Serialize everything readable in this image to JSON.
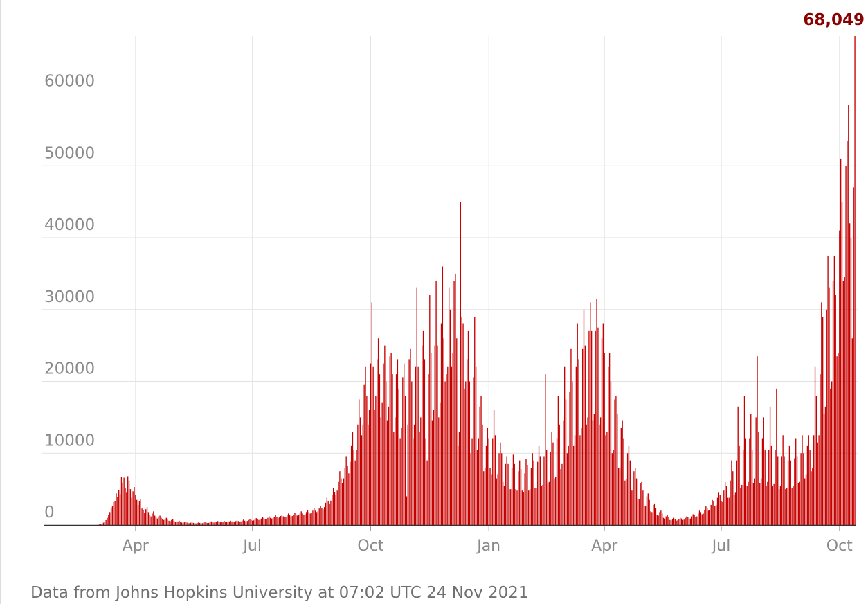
{
  "chart_data": {
    "type": "bar",
    "title": "",
    "xlabel": "",
    "ylabel": "",
    "x_start": "2020-01-22",
    "x_end": "2021-11-23",
    "ylim": [
      0,
      68049
    ],
    "yticks": [
      0,
      10000,
      20000,
      30000,
      40000,
      50000,
      60000
    ],
    "ytick_labels": [
      "0",
      "10000",
      "20000",
      "30000",
      "40000",
      "50000",
      "60000"
    ],
    "xticks": [
      {
        "date": "2020-04-01",
        "label": "Apr"
      },
      {
        "date": "2020-07-01",
        "label": "Jul"
      },
      {
        "date": "2020-10-01",
        "label": "Oct"
      },
      {
        "date": "2021-01-01",
        "label": "Jan"
      },
      {
        "date": "2021-04-01",
        "label": "Apr"
      },
      {
        "date": "2021-07-01",
        "label": "Jul"
      },
      {
        "date": "2021-10-01",
        "label": "Oct"
      }
    ],
    "grid": true,
    "bar_color": "#c70000",
    "peak_label": "68,049",
    "peak_label_color": "#8b0000",
    "values": [
      0,
      0,
      0,
      2,
      0,
      0,
      0,
      0,
      0,
      0,
      0,
      0,
      0,
      0,
      0,
      0,
      0,
      0,
      0,
      0,
      0,
      0,
      0,
      0,
      0,
      0,
      0,
      0,
      0,
      0,
      0,
      0,
      0,
      0,
      0,
      0,
      0,
      0,
      0,
      0,
      10,
      40,
      80,
      150,
      220,
      330,
      470,
      680,
      1000,
      1400,
      1800,
      2300,
      2600,
      3200,
      3300,
      4400,
      3900,
      4900,
      4300,
      6700,
      5900,
      6600,
      5200,
      4500,
      6800,
      6200,
      5000,
      3800,
      4700,
      5300,
      4200,
      3500,
      2800,
      3300,
      3600,
      2300,
      2100,
      1700,
      2200,
      2500,
      1800,
      1400,
      1200,
      1600,
      1900,
      1300,
      1100,
      900,
      1200,
      1300,
      1000,
      800,
      700,
      900,
      1000,
      750,
      600,
      550,
      700,
      800,
      600,
      450,
      400,
      500,
      600,
      450,
      350,
      300,
      380,
      420,
      350,
      280,
      250,
      320,
      380,
      300,
      250,
      230,
      300,
      350,
      300,
      250,
      260,
      330,
      380,
      320,
      280,
      300,
      400,
      500,
      400,
      350,
      380,
      450,
      550,
      450,
      380,
      400,
      480,
      580,
      480,
      400,
      420,
      500,
      600,
      500,
      420,
      450,
      550,
      650,
      550,
      480,
      500,
      620,
      750,
      600,
      520,
      560,
      700,
      850,
      700,
      600,
      650,
      800,
      950,
      800,
      700,
      750,
      900,
      1100,
      950,
      800,
      850,
      1000,
      1200,
      1000,
      900,
      950,
      1150,
      1350,
      1150,
      1000,
      1050,
      1250,
      1450,
      1200,
      1100,
      1150,
      1350,
      1600,
      1350,
      1200,
      1250,
      1450,
      1700,
      1450,
      1300,
      1350,
      1600,
      1900,
      1600,
      1400,
      1500,
      1800,
      2100,
      1800,
      1600,
      1700,
      2000,
      2400,
      2000,
      1800,
      1900,
      2300,
      2700,
      2400,
      2200,
      2500,
      3100,
      3800,
      3300,
      3000,
      3400,
      4200,
      5200,
      4600,
      4200,
      4800,
      6000,
      7500,
      6500,
      5800,
      6500,
      8000,
      9500,
      8200,
      7200,
      8800,
      11000,
      13000,
      10500,
      9000,
      10500,
      14000,
      17500,
      15000,
      12500,
      14000,
      19500,
      22000,
      18000,
      14000,
      16000,
      22500,
      31000,
      22000,
      16000,
      18000,
      23000,
      26000,
      21000,
      15000,
      17000,
      22500,
      25000,
      20000,
      14500,
      16500,
      23500,
      24000,
      21000,
      13000,
      15000,
      21000,
      23000,
      19000,
      12000,
      13500,
      20500,
      22500,
      18000,
      4000,
      14000,
      23000,
      24500,
      20000,
      12000,
      14000,
      22000,
      33000,
      22000,
      13000,
      15000,
      25000,
      27000,
      23000,
      12000,
      9000,
      21000,
      32000,
      24000,
      14500,
      16000,
      25000,
      34000,
      25000,
      15000,
      17000,
      28000,
      36000,
      26000,
      20000,
      21000,
      22000,
      33000,
      30000,
      22000,
      24000,
      34000,
      35000,
      26000,
      11000,
      13000,
      45000,
      29000,
      28000,
      19000,
      20000,
      23000,
      27000,
      20000,
      10000,
      12000,
      20500,
      29000,
      22000,
      10500,
      12000,
      16500,
      18000,
      14000,
      7500,
      8000,
      11000,
      13500,
      12000,
      8000,
      7000,
      12000,
      16000,
      12500,
      6500,
      7000,
      10000,
      11500,
      10000,
      6000,
      5500,
      8500,
      9500,
      8500,
      5000,
      5000,
      8000,
      9800,
      8500,
      5000,
      4800,
      7500,
      9000,
      7800,
      4800,
      4600,
      7200,
      9200,
      8300,
      4800,
      5000,
      8000,
      10000,
      9000,
      5200,
      5200,
      8800,
      11000,
      9500,
      5400,
      5600,
      9500,
      21000,
      10500,
      5800,
      6000,
      10200,
      13000,
      11500,
      6500,
      6700,
      12000,
      18000,
      14000,
      7800,
      8500,
      14500,
      22000,
      17500,
      10000,
      11000,
      18500,
      24500,
      20000,
      11000,
      12500,
      22000,
      28000,
      23000,
      12500,
      13500,
      24500,
      30000,
      25000,
      14000,
      15000,
      27000,
      31000,
      27000,
      14500,
      15500,
      27000,
      31500,
      27500,
      14000,
      15000,
      26000,
      28000,
      24000,
      12500,
      13000,
      22000,
      24000,
      20000,
      10000,
      10500,
      17500,
      18000,
      15500,
      8000,
      8000,
      13500,
      14500,
      12000,
      6200,
      6400,
      10000,
      11000,
      9000,
      4800,
      4800,
      7500,
      8000,
      6500,
      3700,
      3600,
      5800,
      6000,
      4800,
      2700,
      2600,
      4000,
      4400,
      3500,
      1900,
      1800,
      2800,
      3000,
      2400,
      1400,
      1300,
      1800,
      2000,
      1600,
      1000,
      900,
      1200,
      1400,
      1100,
      700,
      650,
      850,
      1000,
      850,
      600,
      650,
      850,
      1000,
      900,
      700,
      750,
      1000,
      1200,
      1100,
      850,
      900,
      1200,
      1500,
      1400,
      1100,
      1200,
      1600,
      2000,
      1800,
      1500,
      1600,
      2100,
      2600,
      2400,
      2000,
      2100,
      2800,
      3500,
      3300,
      2700,
      2800,
      3800,
      4500,
      4200,
      3300,
      3200,
      4800,
      6000,
      5400,
      3800,
      3800,
      6200,
      9000,
      7500,
      4200,
      4500,
      9000,
      16500,
      11000,
      5200,
      5600,
      10500,
      18000,
      12000,
      5400,
      6000,
      12000,
      15500,
      10500,
      5800,
      6500,
      15000,
      23500,
      13000,
      5800,
      6500,
      12000,
      15000,
      10500,
      5500,
      6000,
      10500,
      16500,
      11000,
      5500,
      5700,
      10500,
      19000,
      9500,
      5000,
      5500,
      9500,
      12500,
      9500,
      5000,
      5200,
      9000,
      11000,
      9000,
      5200,
      5500,
      9300,
      12000,
      9500,
      5800,
      6000,
      10000,
      12500,
      10000,
      6500,
      7000,
      11000,
      12500,
      10500,
      7500,
      8000,
      12500,
      22000,
      18000,
      11500,
      12500,
      21000,
      31000,
      29000,
      15500,
      16500,
      30000,
      37500,
      33000,
      19000,
      20000,
      34000,
      37500,
      32000,
      23500,
      24000,
      41000,
      51000,
      45000,
      34000,
      34500,
      50000,
      53500,
      58500,
      42000,
      40000,
      26000,
      47000,
      68049
    ]
  },
  "source_note": "Data from Johns Hopkins University at 07:02 UTC 24 Nov 2021"
}
